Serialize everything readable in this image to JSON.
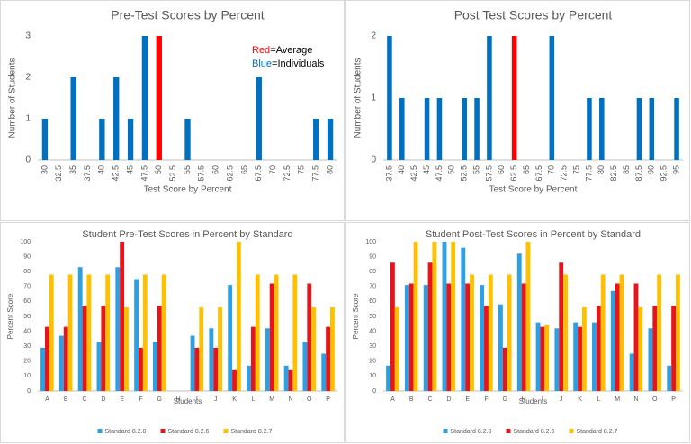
{
  "chart_data": [
    {
      "type": "bar",
      "title": "Pre-Test Scores by Percent",
      "x_label": "Test Score by Percent",
      "y_label": "Number of Students",
      "categories": [
        "30",
        "32.5",
        "35",
        "37.5",
        "40",
        "42.5",
        "45",
        "47.5",
        "50",
        "52.5",
        "55",
        "57.5",
        "60",
        "62.5",
        "65",
        "67.5",
        "70",
        "72.5",
        "75",
        "77.5",
        "80"
      ],
      "values": [
        1,
        0,
        2,
        0,
        1,
        2,
        1,
        3,
        3,
        0,
        1,
        0,
        0,
        0,
        0,
        2,
        0,
        0,
        0,
        1,
        1
      ],
      "colors": [
        "#0070c0",
        "#0070c0",
        "#0070c0",
        "#0070c0",
        "#0070c0",
        "#0070c0",
        "#0070c0",
        "#0070c0",
        "#ff0000",
        "#0070c0",
        "#0070c0",
        "#0070c0",
        "#0070c0",
        "#0070c0",
        "#0070c0",
        "#0070c0",
        "#0070c0",
        "#0070c0",
        "#0070c0",
        "#0070c0",
        "#0070c0"
      ],
      "ylim": [
        0,
        3
      ],
      "yticks": [
        0,
        1,
        2,
        3
      ],
      "grid": false,
      "annotations": [
        {
          "key": "Red",
          "text": "=Average",
          "color": "#ff0000"
        },
        {
          "key": "Blue",
          "text": "=Individuals",
          "color": "#0070c0"
        }
      ]
    },
    {
      "type": "bar",
      "title": "Post Test Scores by Percent",
      "x_label": "Test Score by Percent",
      "y_label": "Number of Students",
      "categories": [
        "37.5",
        "40",
        "42.5",
        "45",
        "47.5",
        "50",
        "52.5",
        "55",
        "57.5",
        "60",
        "62.5",
        "65",
        "67.5",
        "70",
        "72.5",
        "75",
        "77.5",
        "80",
        "82.5",
        "85",
        "87.5",
        "90",
        "92.5",
        "95"
      ],
      "values": [
        2,
        1,
        0,
        1,
        1,
        0,
        1,
        1,
        2,
        0,
        2,
        0,
        0,
        2,
        0,
        0,
        1,
        1,
        0,
        0,
        1,
        1,
        0,
        1
      ],
      "colors": [
        "#0070c0",
        "#0070c0",
        "#0070c0",
        "#0070c0",
        "#0070c0",
        "#0070c0",
        "#0070c0",
        "#0070c0",
        "#0070c0",
        "#0070c0",
        "#ff0000",
        "#0070c0",
        "#0070c0",
        "#0070c0",
        "#0070c0",
        "#0070c0",
        "#0070c0",
        "#0070c0",
        "#0070c0",
        "#0070c0",
        "#0070c0",
        "#0070c0",
        "#0070c0",
        "#0070c0"
      ],
      "ylim": [
        0,
        2
      ],
      "yticks": [
        0,
        1,
        2
      ],
      "grid": false
    },
    {
      "type": "grouped_bar",
      "title": "Student Pre-Test Scores in Percent by Standard",
      "x_label": "Students",
      "y_label": "Percent Score",
      "categories": [
        "A",
        "B",
        "C",
        "D",
        "E",
        "F",
        "G",
        "H",
        "I",
        "J",
        "K",
        "L",
        "M",
        "N",
        "O",
        "P"
      ],
      "series": [
        {
          "name": "Standard 8.2.8",
          "color": "#2e9fe0",
          "values": [
            29,
            37,
            83,
            33,
            83,
            75,
            33,
            0,
            37,
            42,
            71,
            17,
            42,
            17,
            33,
            25
          ]
        },
        {
          "name": "Standard 8.2.6",
          "color": "#e8141b",
          "values": [
            43,
            43,
            57,
            57,
            100,
            29,
            57,
            0,
            29,
            29,
            14,
            43,
            72,
            14,
            72,
            43
          ]
        },
        {
          "name": "Standard 8.2.7",
          "color": "#ffc000",
          "values": [
            78,
            78,
            78,
            78,
            56,
            78,
            78,
            0,
            56,
            56,
            100,
            78,
            78,
            78,
            56,
            56
          ]
        }
      ],
      "ylim": [
        0,
        100
      ],
      "yticks": [
        0,
        10,
        20,
        30,
        40,
        50,
        60,
        70,
        80,
        90,
        100
      ],
      "grid": false
    },
    {
      "type": "grouped_bar",
      "title": "Student Post-Test Scores in Percent by Standard",
      "x_label": "Students",
      "y_label": "Percent Score",
      "categories": [
        "A",
        "B",
        "C",
        "D",
        "E",
        "F",
        "G",
        "H",
        "I",
        "J",
        "K",
        "L",
        "M",
        "N",
        "O",
        "P"
      ],
      "series": [
        {
          "name": "Standard 8.2.8",
          "color": "#2e9fe0",
          "values": [
            17,
            71,
            71,
            100,
            96,
            71,
            58,
            92,
            46,
            42,
            46,
            46,
            67,
            25,
            42,
            17
          ]
        },
        {
          "name": "Standard 8.2.6",
          "color": "#e8141b",
          "values": [
            86,
            72,
            86,
            72,
            72,
            57,
            29,
            72,
            43,
            86,
            43,
            57,
            72,
            72,
            57,
            57
          ]
        },
        {
          "name": "Standard 8.2.7",
          "color": "#ffc000",
          "values": [
            56,
            100,
            100,
            100,
            78,
            78,
            78,
            100,
            44,
            78,
            56,
            78,
            78,
            56,
            78,
            78
          ]
        }
      ],
      "ylim": [
        0,
        100
      ],
      "yticks": [
        0,
        10,
        20,
        30,
        40,
        50,
        60,
        70,
        80,
        90,
        100
      ],
      "grid": false
    }
  ]
}
